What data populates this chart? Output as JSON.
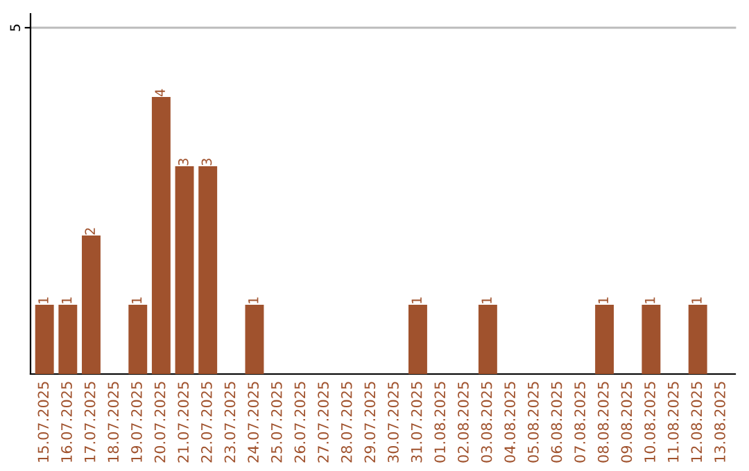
{
  "chart_data": {
    "type": "bar",
    "categories": [
      "15.07.2025",
      "16.07.2025",
      "17.07.2025",
      "18.07.2025",
      "19.07.2025",
      "20.07.2025",
      "21.07.2025",
      "22.07.2025",
      "23.07.2025",
      "24.07.2025",
      "25.07.2025",
      "26.07.2025",
      "27.07.2025",
      "28.07.2025",
      "29.07.2025",
      "30.07.2025",
      "31.07.2025",
      "01.08.2025",
      "02.08.2025",
      "03.08.2025",
      "04.08.2025",
      "05.08.2025",
      "06.08.2025",
      "07.08.2025",
      "08.08.2025",
      "09.08.2025",
      "10.08.2025",
      "11.08.2025",
      "12.08.2025",
      "13.08.2025"
    ],
    "values": [
      1,
      1,
      2,
      0,
      1,
      4,
      3,
      3,
      0,
      1,
      0,
      0,
      0,
      0,
      0,
      0,
      1,
      0,
      0,
      1,
      0,
      0,
      0,
      0,
      1,
      0,
      1,
      0,
      1,
      0
    ],
    "value_labels": [
      "1",
      "1",
      "2",
      null,
      "1",
      "4",
      "3",
      "3",
      null,
      "1",
      null,
      null,
      null,
      null,
      null,
      null,
      "1",
      null,
      null,
      "1",
      null,
      null,
      null,
      null,
      "1",
      null,
      "1",
      null,
      "1",
      null
    ],
    "color": "#a0522d",
    "ylim": [
      0,
      5.2
    ],
    "yticks": [
      5
    ],
    "grid": "y"
  }
}
